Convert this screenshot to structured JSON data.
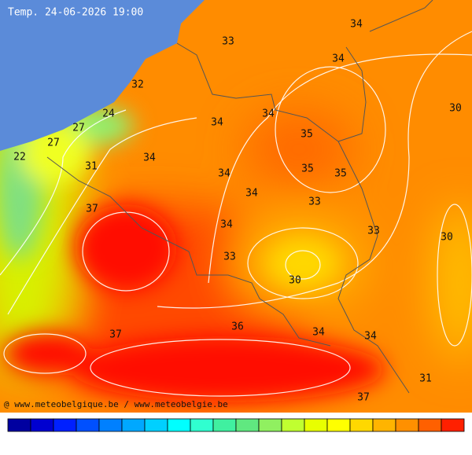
{
  "header": {
    "title": "Temp. 24-06-2026 19:00"
  },
  "labels": [
    "34",
    "33",
    "34",
    "32",
    "30",
    "24",
    "34",
    "34",
    "27",
    "35",
    "27",
    "22",
    "31",
    "34",
    "35",
    "35",
    "34",
    "34",
    "33",
    "37",
    "34",
    "33",
    "30",
    "33",
    "30",
    "36",
    "37",
    "34",
    "34",
    "31",
    "37"
  ],
  "credit": "@ www.meteobelgique.be / www.meteobelgie.be"
}
